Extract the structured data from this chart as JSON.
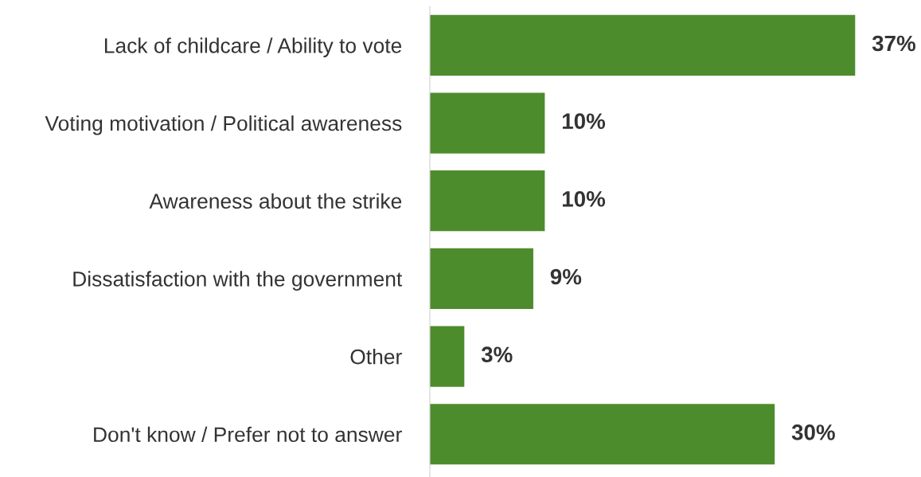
{
  "chart_data": {
    "type": "bar",
    "orientation": "horizontal",
    "categories": [
      "Lack of childcare / Ability to vote",
      "Voting motivation / Political awareness",
      "Awareness about the strike",
      "Dissatisfaction with the government",
      "Other",
      "Don't know / Prefer not to answer"
    ],
    "values": [
      37,
      10,
      10,
      9,
      3,
      30
    ],
    "value_labels": [
      "37%",
      "10%",
      "10%",
      "9%",
      "3%",
      "30%"
    ],
    "color": "#4d8c2c",
    "tick_labels": "y",
    "grid": false,
    "legend": false
  }
}
